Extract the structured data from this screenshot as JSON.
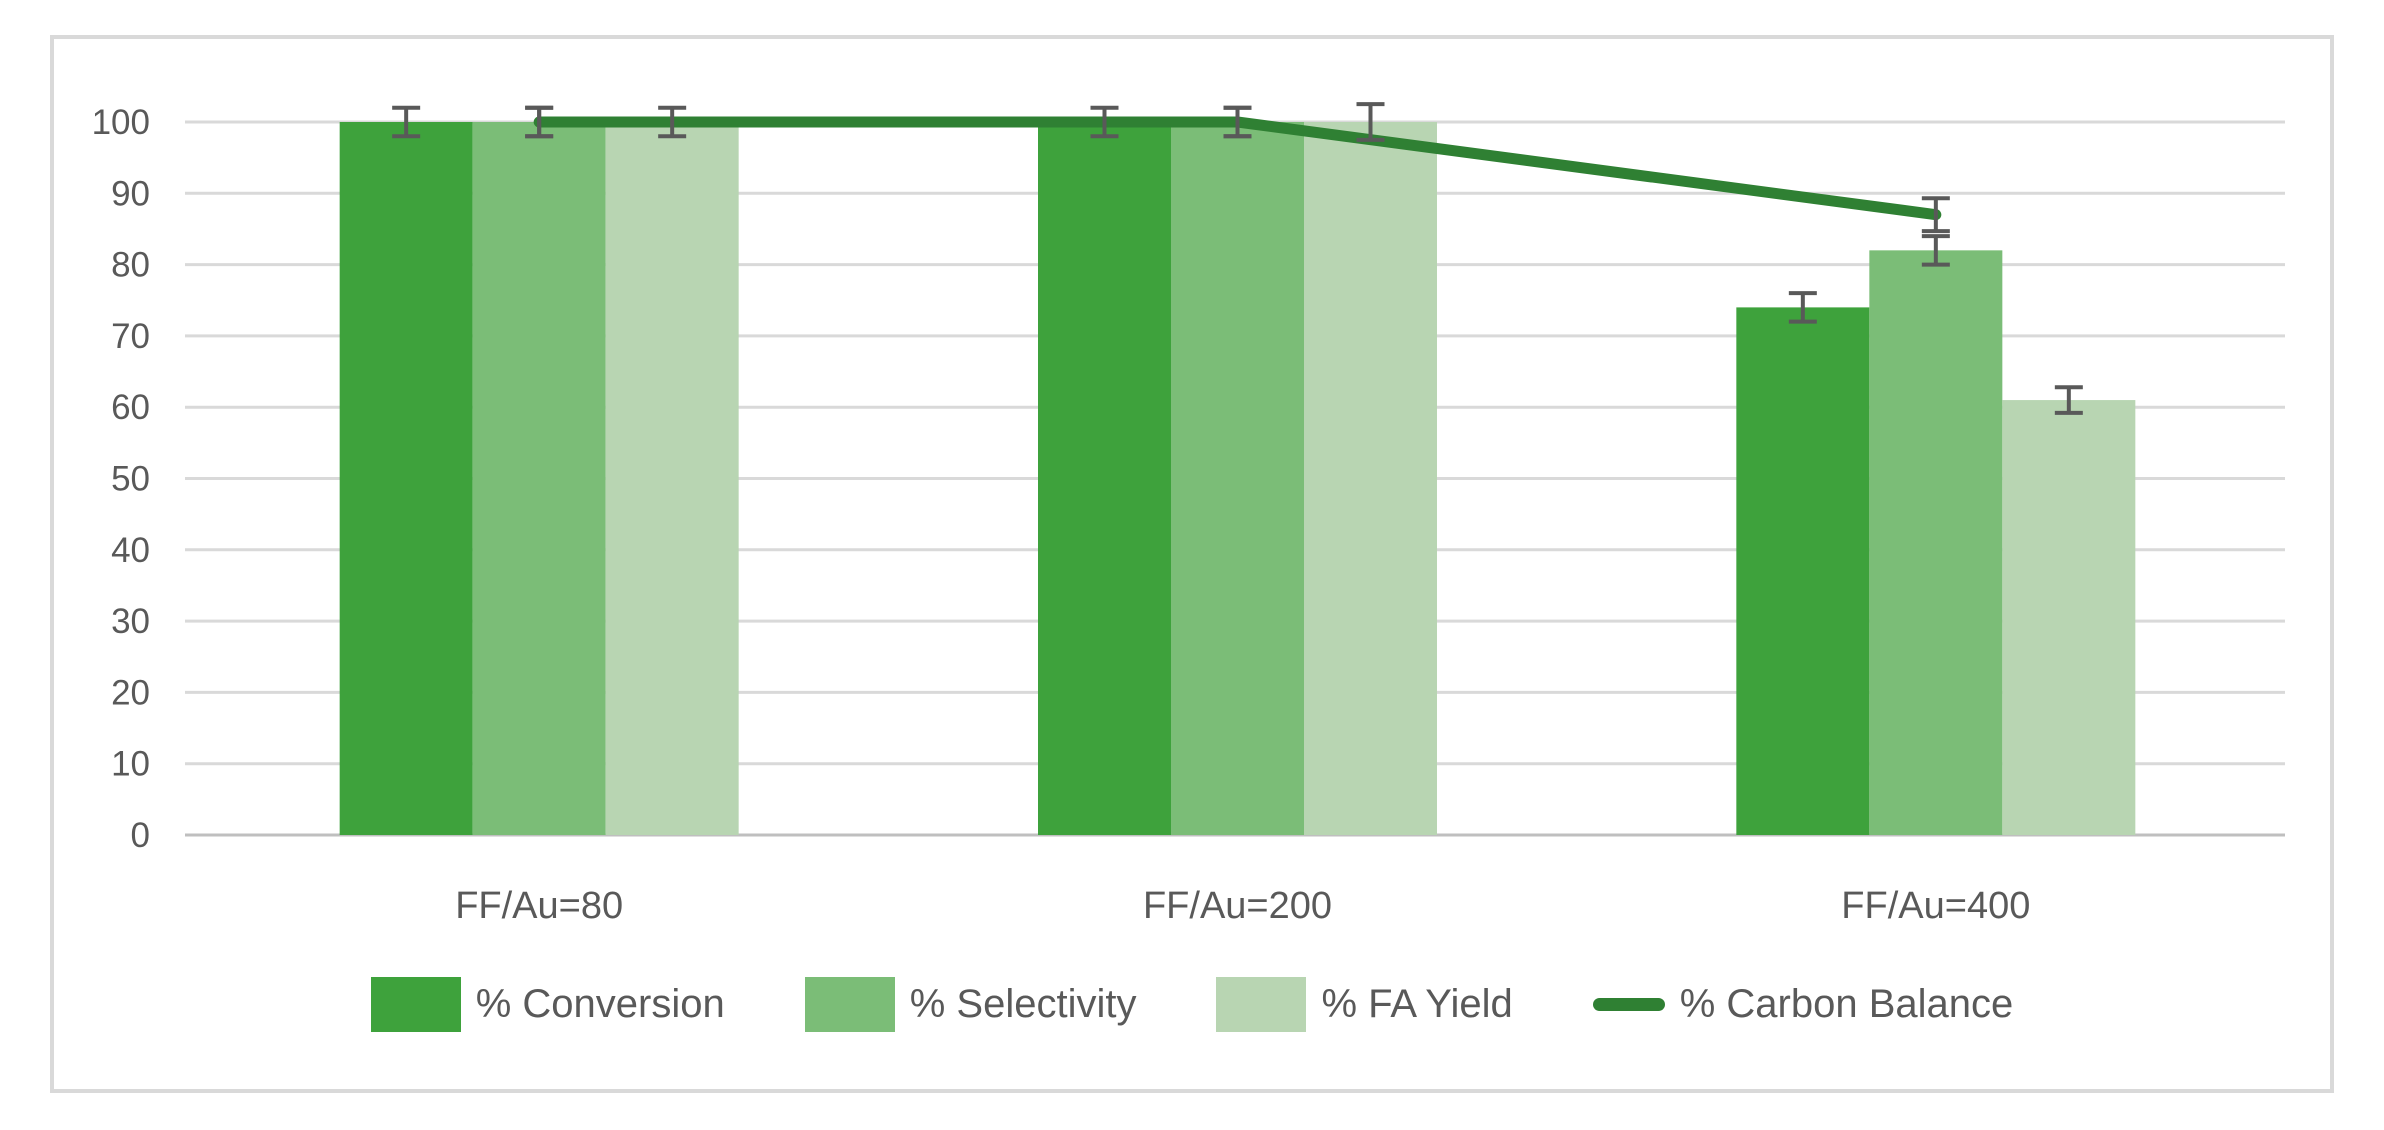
{
  "chart_data": {
    "type": "bar",
    "subtype": "clustered-bars-with-line-overlay",
    "categories": [
      "FF/Au=80",
      "FF/Au=200",
      "FF/Au=400"
    ],
    "series": [
      {
        "name": "% Conversion",
        "type": "bar",
        "color": "#3EA23C",
        "values": [
          100,
          100,
          74
        ],
        "errors": [
          2,
          2,
          2
        ]
      },
      {
        "name": "% Selectivity",
        "type": "bar",
        "color": "#7BBD77",
        "values": [
          100,
          100,
          82
        ],
        "errors": [
          2,
          2,
          2
        ]
      },
      {
        "name": "% FA Yield",
        "type": "bar",
        "color": "#B8D5B2",
        "values": [
          100,
          100,
          61
        ],
        "errors": [
          2,
          2.5,
          1.8
        ]
      },
      {
        "name": "% Carbon Balance",
        "type": "line",
        "color": "#2F8033",
        "values": [
          100,
          100,
          87
        ],
        "errors": [
          2,
          2,
          2.3
        ]
      }
    ],
    "title": "",
    "xlabel": "",
    "ylabel": "",
    "ylim": [
      0,
      100
    ],
    "ytick_step": 10,
    "ytick_labels": [
      "0",
      "10",
      "20",
      "30",
      "40",
      "50",
      "60",
      "70",
      "80",
      "90",
      "100"
    ],
    "grid": true,
    "legend_position": "bottom"
  },
  "styles": {
    "background": "#FFFFFF",
    "frame_border_color": "#D9D9D9",
    "grid_color": "#D9D9D9",
    "axis_line_color": "#BFBFBF",
    "text_color": "#595959",
    "error_bar_color": "#595959"
  }
}
